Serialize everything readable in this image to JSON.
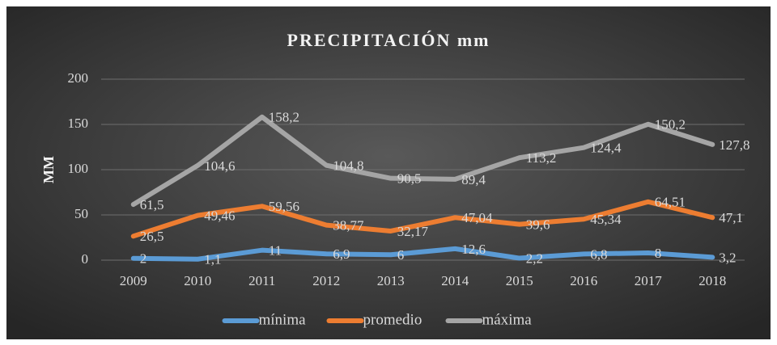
{
  "chart_data": {
    "type": "line",
    "title": "PRECIPITACIÓN mm",
    "y_label": "MM",
    "categories": [
      "2009",
      "2010",
      "2011",
      "2012",
      "2013",
      "2014",
      "2015",
      "2016",
      "2017",
      "2018"
    ],
    "series": [
      {
        "name": "mínima",
        "color": "#5b9bd5",
        "values": [
          2,
          1.1,
          11,
          6.9,
          6,
          12.6,
          2.2,
          6.8,
          8,
          3.2
        ],
        "value_labels": [
          "2",
          "1,1",
          "11",
          "6,9",
          "6",
          "12,6",
          "2,2",
          "6,8",
          "8",
          "3,2"
        ]
      },
      {
        "name": "promedio",
        "color": "#ed7d31",
        "values": [
          26.5,
          49.46,
          59.56,
          38.77,
          32.17,
          47.04,
          39.6,
          45.34,
          64.51,
          47.1
        ],
        "value_labels": [
          "26,5",
          "49,46",
          "59,56",
          "38,77",
          "32,17",
          "47,04",
          "39,6",
          "45,34",
          "64,51",
          "47,1"
        ]
      },
      {
        "name": "máxima",
        "color": "#a5a5a5",
        "values": [
          61.5,
          104.6,
          158.2,
          104.8,
          90.5,
          89.4,
          113.2,
          124.4,
          150.2,
          127.8
        ],
        "value_labels": [
          "61,5",
          "104,6",
          "158,2",
          "104,8",
          "90,5",
          "89,4",
          "113,2",
          "124,4",
          "150,2",
          "127,8"
        ]
      }
    ],
    "ylim": [
      0,
      200
    ],
    "yticks": [
      0,
      50,
      100,
      150,
      200
    ],
    "grid": true,
    "legend": "bottom"
  }
}
